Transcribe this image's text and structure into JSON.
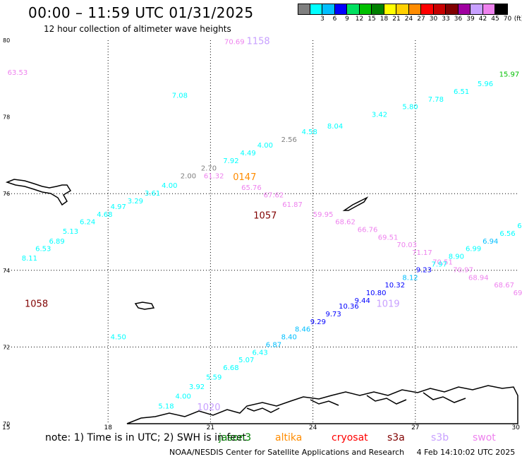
{
  "header": {
    "title": "00:00 – 11:59 UTC 01/31/2025",
    "subtitle": "12 hour collection of altimeter wave heights"
  },
  "legend": {
    "unit": "(ft)",
    "swatches": [
      {
        "color": "#7f7f7f",
        "label": ""
      },
      {
        "color": "#00ffff",
        "label": "3"
      },
      {
        "color": "#00bfff",
        "label": "6"
      },
      {
        "color": "#0000ff",
        "label": "9"
      },
      {
        "color": "#00e060",
        "label": "12"
      },
      {
        "color": "#00c000",
        "label": "15"
      },
      {
        "color": "#008000",
        "label": "18"
      },
      {
        "color": "#ffff00",
        "label": "21"
      },
      {
        "color": "#ffd000",
        "label": "24"
      },
      {
        "color": "#ff8c00",
        "label": "27"
      },
      {
        "color": "#ff0000",
        "label": "30"
      },
      {
        "color": "#c80000",
        "label": "33"
      },
      {
        "color": "#800000",
        "label": "36"
      },
      {
        "color": "#a000a0",
        "label": "39"
      },
      {
        "color": "#c8a0ff",
        "label": "42"
      },
      {
        "color": "#ee82ee",
        "label": "45"
      },
      {
        "color": "#000000",
        "label": "70"
      }
    ]
  },
  "map": {
    "lon_range": [
      15,
      30
    ],
    "lat_range": [
      70,
      80
    ],
    "lat_ticks": [
      "80",
      "78",
      "76",
      "74",
      "72",
      "70"
    ],
    "lon_ticks": [
      "15",
      "18",
      "21",
      "24",
      "27",
      "30"
    ],
    "grid_lons": [
      18,
      21,
      24,
      27
    ],
    "grid_lats": [
      72,
      74,
      76
    ]
  },
  "observations": [
    {
      "lon": 15.35,
      "lat": 79.1,
      "text": "63.53",
      "color": "#ee82ee"
    },
    {
      "lon": 21.7,
      "lat": 79.9,
      "text": "70.69",
      "color": "#ee82ee"
    },
    {
      "lon": 21.1,
      "lat": 76.4,
      "text": "61.32",
      "color": "#ee82ee"
    },
    {
      "lon": 22.2,
      "lat": 76.1,
      "text": "65.76",
      "color": "#ee82ee"
    },
    {
      "lon": 22.85,
      "lat": 75.9,
      "text": "67.62",
      "color": "#ee82ee"
    },
    {
      "lon": 23.4,
      "lat": 75.65,
      "text": "61.87",
      "color": "#ee82ee"
    },
    {
      "lon": 24.3,
      "lat": 75.4,
      "text": "59.95",
      "color": "#ee82ee"
    },
    {
      "lon": 24.95,
      "lat": 75.2,
      "text": "68.62",
      "color": "#ee82ee"
    },
    {
      "lon": 25.6,
      "lat": 75.0,
      "text": "66.76",
      "color": "#ee82ee"
    },
    {
      "lon": 26.2,
      "lat": 74.8,
      "text": "69.51",
      "color": "#ee82ee"
    },
    {
      "lon": 26.75,
      "lat": 74.6,
      "text": "70.03",
      "color": "#ee82ee"
    },
    {
      "lon": 27.2,
      "lat": 74.4,
      "text": "71.17",
      "color": "#ee82ee"
    },
    {
      "lon": 27.8,
      "lat": 74.15,
      "text": "70.51",
      "color": "#ee82ee"
    },
    {
      "lon": 28.4,
      "lat": 73.95,
      "text": "70.97",
      "color": "#ee82ee"
    },
    {
      "lon": 28.85,
      "lat": 73.75,
      "text": "68.94",
      "color": "#ee82ee"
    },
    {
      "lon": 29.6,
      "lat": 73.55,
      "text": "68.67",
      "color": "#ee82ee"
    },
    {
      "lon": 30.0,
      "lat": 73.35,
      "text": "69",
      "color": "#ee82ee"
    },
    {
      "lon": 18.3,
      "lat": 72.2,
      "text": "4.50",
      "color": "#00ffff"
    },
    {
      "lon": 18.6,
      "lat": 72.5,
      "text": "",
      "color": "#00ffff"
    },
    {
      "lon": 15.7,
      "lat": 74.25,
      "text": "8.11",
      "color": "#00ffff"
    },
    {
      "lon": 16.1,
      "lat": 74.5,
      "text": "6.53",
      "color": "#00ffff"
    },
    {
      "lon": 16.5,
      "lat": 74.7,
      "text": "6.89",
      "color": "#00ffff"
    },
    {
      "lon": 16.9,
      "lat": 74.95,
      "text": "5.13",
      "color": "#00ffff"
    },
    {
      "lon": 17.4,
      "lat": 75.2,
      "text": "6.24",
      "color": "#00ffff"
    },
    {
      "lon": 17.9,
      "lat": 75.4,
      "text": "4.68",
      "color": "#00ffff"
    },
    {
      "lon": 18.3,
      "lat": 75.6,
      "text": "4.97",
      "color": "#00ffff"
    },
    {
      "lon": 18.8,
      "lat": 75.75,
      "text": "3.29",
      "color": "#00ffff"
    },
    {
      "lon": 19.3,
      "lat": 75.95,
      "text": "3.61",
      "color": "#00ffff"
    },
    {
      "lon": 19.8,
      "lat": 76.15,
      "text": "4.00",
      "color": "#00ffff"
    },
    {
      "lon": 20.35,
      "lat": 76.4,
      "text": "2.00",
      "color": "#7f7f7f"
    },
    {
      "lon": 20.95,
      "lat": 76.6,
      "text": "2.70",
      "color": "#7f7f7f"
    },
    {
      "lon": 21.6,
      "lat": 76.8,
      "text": "7.92",
      "color": "#00ffff"
    },
    {
      "lon": 22.1,
      "lat": 77.0,
      "text": "4.49",
      "color": "#00ffff"
    },
    {
      "lon": 22.6,
      "lat": 77.2,
      "text": "4.00",
      "color": "#00ffff"
    },
    {
      "lon": 23.3,
      "lat": 77.35,
      "text": "2.56",
      "color": "#7f7f7f"
    },
    {
      "lon": 23.9,
      "lat": 77.55,
      "text": "4.58",
      "color": "#00ffff"
    },
    {
      "lon": 24.65,
      "lat": 77.7,
      "text": "8.04",
      "color": "#00ffff"
    },
    {
      "lon": 25.95,
      "lat": 78.0,
      "text": "3.42",
      "color": "#00ffff"
    },
    {
      "lon": 26.85,
      "lat": 78.2,
      "text": "5.80",
      "color": "#00ffff"
    },
    {
      "lon": 27.6,
      "lat": 78.4,
      "text": "7.78",
      "color": "#00ffff"
    },
    {
      "lon": 28.35,
      "lat": 78.6,
      "text": "6.51",
      "color": "#00ffff"
    },
    {
      "lon": 29.05,
      "lat": 78.8,
      "text": "5.96",
      "color": "#00ffff"
    },
    {
      "lon": 29.75,
      "lat": 79.05,
      "text": "15.97",
      "color": "#00c000"
    },
    {
      "lon": 20.1,
      "lat": 78.5,
      "text": "7.08",
      "color": "#00ffff"
    },
    {
      "lon": 19.7,
      "lat": 70.4,
      "text": "5.18",
      "color": "#00ffff"
    },
    {
      "lon": 20.2,
      "lat": 70.65,
      "text": "4.00",
      "color": "#00ffff"
    },
    {
      "lon": 20.6,
      "lat": 70.9,
      "text": "3.92",
      "color": "#00ffff"
    },
    {
      "lon": 21.1,
      "lat": 71.15,
      "text": "5.59",
      "color": "#00ffff"
    },
    {
      "lon": 21.6,
      "lat": 71.4,
      "text": "6.68",
      "color": "#00ffff"
    },
    {
      "lon": 22.05,
      "lat": 71.6,
      "text": "5.07",
      "color": "#00ffff"
    },
    {
      "lon": 22.45,
      "lat": 71.8,
      "text": "6.43",
      "color": "#00ffff"
    },
    {
      "lon": 22.85,
      "lat": 72.0,
      "text": "6.87",
      "color": "#00bfff"
    },
    {
      "lon": 23.3,
      "lat": 72.2,
      "text": "8.40",
      "color": "#00bfff"
    },
    {
      "lon": 23.7,
      "lat": 72.4,
      "text": "8.46",
      "color": "#00bfff"
    },
    {
      "lon": 24.15,
      "lat": 72.6,
      "text": "9.29",
      "color": "#0000ff"
    },
    {
      "lon": 24.6,
      "lat": 72.8,
      "text": "9.73",
      "color": "#0000ff"
    },
    {
      "lon": 25.05,
      "lat": 73.0,
      "text": "10.36",
      "color": "#0000ff"
    },
    {
      "lon": 25.45,
      "lat": 73.15,
      "text": "9.44",
      "color": "#0000ff"
    },
    {
      "lon": 25.85,
      "lat": 73.35,
      "text": "10.80",
      "color": "#0000ff"
    },
    {
      "lon": 26.4,
      "lat": 73.55,
      "text": "10.32",
      "color": "#0000ff"
    },
    {
      "lon": 26.85,
      "lat": 73.75,
      "text": "8.12",
      "color": "#00bfff"
    },
    {
      "lon": 27.25,
      "lat": 73.95,
      "text": "9.23",
      "color": "#0000ff"
    },
    {
      "lon": 27.7,
      "lat": 74.1,
      "text": "7.97",
      "color": "#00ffff"
    },
    {
      "lon": 28.2,
      "lat": 74.3,
      "text": "8.90",
      "color": "#00ffff"
    },
    {
      "lon": 28.7,
      "lat": 74.5,
      "text": "6.99",
      "color": "#00ffff"
    },
    {
      "lon": 29.2,
      "lat": 74.7,
      "text": "6.94",
      "color": "#00bfff"
    },
    {
      "lon": 29.7,
      "lat": 74.9,
      "text": "6.56",
      "color": "#00ffff"
    },
    {
      "lon": 30.05,
      "lat": 75.1,
      "text": "6",
      "color": "#00ffff"
    }
  ],
  "ids": [
    {
      "lon": 22.4,
      "lat": 79.9,
      "text": "1158",
      "color": "#c8a0ff"
    },
    {
      "lon": 22.0,
      "lat": 76.35,
      "text": "0147",
      "color": "#ff8c00"
    },
    {
      "lon": 22.6,
      "lat": 75.35,
      "text": "1057",
      "color": "#800000"
    },
    {
      "lon": 15.9,
      "lat": 73.05,
      "text": "1058",
      "color": "#800000"
    },
    {
      "lon": 26.2,
      "lat": 73.05,
      "text": "1019",
      "color": "#c8a0ff"
    },
    {
      "lon": 20.95,
      "lat": 70.35,
      "text": "1020",
      "color": "#c8a0ff"
    }
  ],
  "footer": {
    "note": "note:  1) Time is in UTC;  2) SWH is in feet",
    "satellites": [
      {
        "name": "jason3",
        "color": "#008000"
      },
      {
        "name": "altika",
        "color": "#ff8c00"
      },
      {
        "name": "cryosat",
        "color": "#ff0000"
      },
      {
        "name": "s3a",
        "color": "#800000"
      },
      {
        "name": "s3b",
        "color": "#c8a0ff"
      },
      {
        "name": "swot",
        "color": "#ee82ee"
      }
    ],
    "credit": "NOAA/NESDIS Center for Satellite Applications and Research     4 Feb 14:10:02 UTC 2025"
  }
}
